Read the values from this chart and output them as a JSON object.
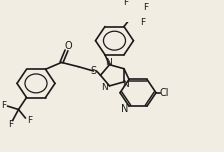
{
  "bg_color": "#f2ede2",
  "bond_color": "#1a1a1a",
  "bond_lw": 1.2,
  "font_size": 6.5,
  "fig_w": 2.24,
  "fig_h": 1.52,
  "dpi": 100,
  "xlim": [
    0,
    224
  ],
  "ylim": [
    0,
    152
  ]
}
